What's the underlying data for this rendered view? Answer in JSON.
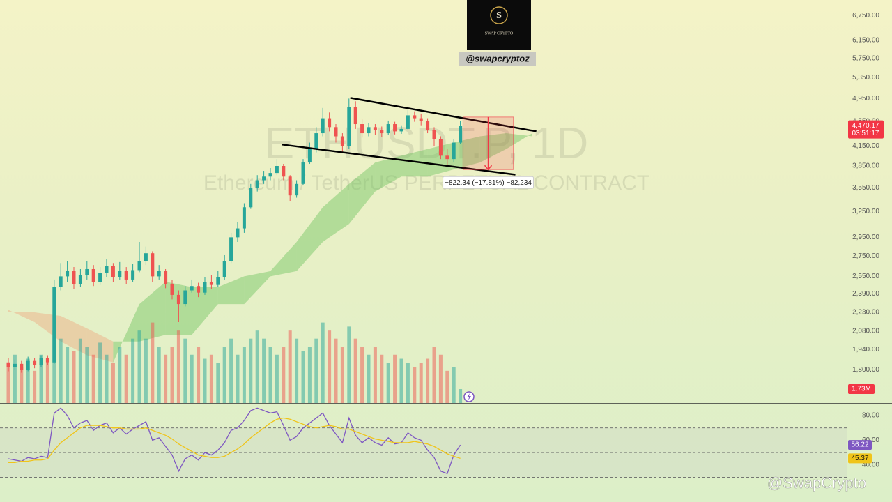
{
  "branding": {
    "logo_letter": "S",
    "logo_name": "SWAP CRYPTO",
    "handle": "@swapcryptoz",
    "watermark": "@SwapCrypto"
  },
  "chart_data": [
    {
      "type": "candlestick",
      "symbol_watermark": "ETHUSDT.P, 1D",
      "description_watermark": "Ethereum / TetherUS PERPETUAL CONTRACT",
      "open": [
        1850,
        1820,
        1840,
        1800,
        1860,
        1830,
        1880,
        1850,
        2450,
        2550,
        2600,
        2480,
        2560,
        2620,
        2500,
        2580,
        2650,
        2540,
        2600,
        2520,
        2610,
        2700,
        2780,
        2550,
        2600,
        2480,
        2380,
        2300,
        2420,
        2460,
        2400,
        2500,
        2470,
        2540,
        2700,
        2950,
        3050,
        3300,
        3550,
        3650,
        3700,
        3750,
        3850,
        3700,
        3450,
        3600,
        3900,
        4100,
        4350,
        4600,
        4450,
        4300,
        4150,
        4800,
        4500,
        4350,
        4450,
        4400,
        4350,
        4500,
        4380,
        4420,
        4650,
        4600,
        4550,
        4400,
        4250,
        4000,
        3950,
        4200
      ],
      "high": [
        1880,
        1870,
        1860,
        1890,
        1880,
        1900,
        1900,
        2520,
        2680,
        2700,
        2640,
        2620,
        2700,
        2660,
        2640,
        2720,
        2680,
        2690,
        2640,
        2670,
        2900,
        2850,
        2800,
        2660,
        2620,
        2520,
        2420,
        2460,
        2520,
        2490,
        2540,
        2560,
        2600,
        2760,
        3000,
        3120,
        3350,
        3600,
        3720,
        3780,
        3820,
        3950,
        3880,
        3720,
        3650,
        3950,
        4200,
        4450,
        4780,
        4700,
        4500,
        4350,
        4950,
        4900,
        4580,
        4520,
        4500,
        4460,
        4560,
        4540,
        4480,
        4750,
        4720,
        4680,
        4600,
        4450,
        4300,
        4100,
        4250,
        4550
      ],
      "low": [
        1790,
        1800,
        1780,
        1790,
        1810,
        1820,
        1830,
        1840,
        2420,
        2500,
        2430,
        2450,
        2520,
        2460,
        2470,
        2540,
        2500,
        2520,
        2480,
        2500,
        2590,
        2660,
        2500,
        2520,
        2440,
        2340,
        2150,
        2280,
        2400,
        2360,
        2380,
        2430,
        2450,
        2520,
        2680,
        2900,
        3000,
        3280,
        3500,
        3600,
        3650,
        3720,
        3650,
        3380,
        3420,
        3580,
        3880,
        4050,
        4300,
        4380,
        4200,
        4060,
        4100,
        4420,
        4280,
        4300,
        4320,
        4290,
        4320,
        4330,
        4340,
        4400,
        4540,
        4480,
        4350,
        4150,
        3950,
        3850,
        3900,
        4180
      ],
      "close": [
        1820,
        1840,
        1800,
        1860,
        1830,
        1880,
        1850,
        2450,
        2550,
        2600,
        2480,
        2560,
        2620,
        2500,
        2580,
        2650,
        2540,
        2600,
        2520,
        2610,
        2700,
        2780,
        2550,
        2600,
        2480,
        2380,
        2300,
        2420,
        2460,
        2400,
        2500,
        2470,
        2540,
        2700,
        2950,
        3050,
        3300,
        3550,
        3650,
        3700,
        3750,
        3850,
        3700,
        3450,
        3600,
        3900,
        4100,
        4350,
        4600,
        4450,
        4300,
        4150,
        4800,
        4500,
        4350,
        4450,
        4400,
        4350,
        4500,
        4380,
        4420,
        4650,
        4600,
        4550,
        4400,
        4250,
        4000,
        3950,
        4200,
        4470.17
      ],
      "colors": {
        "up": "#26a69a",
        "down": "#ef5350"
      },
      "log_scale": true,
      "ylim": [
        1590,
        7150
      ],
      "yticks": [
        {
          "value": 6750,
          "label": "6,750.00"
        },
        {
          "value": 6150,
          "label": "6,150.00"
        },
        {
          "value": 5750,
          "label": "5,750.00"
        },
        {
          "value": 5350,
          "label": "5,350.00"
        },
        {
          "value": 4950,
          "label": "4,950.00"
        },
        {
          "value": 4550,
          "label": "4,550.00"
        },
        {
          "value": 4150,
          "label": "4,150.00"
        },
        {
          "value": 3850,
          "label": "3,850.00"
        },
        {
          "value": 3550,
          "label": "3,550.00"
        },
        {
          "value": 3250,
          "label": "3,250.00"
        },
        {
          "value": 2950,
          "label": "2,950.00"
        },
        {
          "value": 2750,
          "label": "2,750.00"
        },
        {
          "value": 2550,
          "label": "2,550.00"
        },
        {
          "value": 2390,
          "label": "2,390.00"
        },
        {
          "value": 2230,
          "label": "2,230.00"
        },
        {
          "value": 2080,
          "label": "2,080.00"
        },
        {
          "value": 1940,
          "label": "1,940.00"
        },
        {
          "value": 1800,
          "label": "1,800.00"
        }
      ],
      "last_price": {
        "value": 4470.17,
        "label": "4,470.17"
      },
      "countdown": "03:51:17",
      "volume": {
        "values": [
          5,
          6,
          4.5,
          5.5,
          4,
          6,
          5,
          9,
          8,
          7,
          6.5,
          8,
          7,
          6,
          7.5,
          6,
          5,
          7,
          6,
          8,
          9,
          8,
          10,
          7,
          6,
          7,
          9,
          8,
          6,
          7,
          5.5,
          6,
          5,
          7,
          8,
          6,
          7,
          8,
          9,
          8,
          7,
          6,
          7,
          9,
          8,
          6.5,
          7,
          8,
          10,
          9,
          8,
          7,
          9.5,
          8,
          7,
          6,
          7,
          6,
          5,
          6,
          5.5,
          5,
          4.5,
          5,
          5.5,
          7,
          6,
          4,
          4.5,
          1.73
        ],
        "ylim": [
          0,
          13
        ],
        "last_label": "1.73M"
      },
      "cloud": {
        "x": [
          0,
          4,
          8,
          12,
          16,
          20,
          24,
          28,
          32,
          36,
          40,
          44,
          48,
          52,
          56,
          60,
          64,
          68,
          72,
          76,
          80
        ],
        "span_a": [
          2250,
          2150,
          2000,
          1900,
          1850,
          2300,
          2500,
          2450,
          2450,
          2550,
          2600,
          2900,
          3300,
          3600,
          3900,
          4000,
          4100,
          4200,
          4300,
          4350,
          4300
        ],
        "span_b": [
          2230,
          2230,
          2200,
          2100,
          2000,
          2000,
          2050,
          2050,
          2300,
          2300,
          2550,
          2600,
          2900,
          3100,
          3500,
          3700,
          3700,
          3800,
          3900,
          4100,
          4350
        ]
      },
      "trendlines": [
        {
          "x": [
            52.2,
            80.6
          ],
          "y": [
            4963,
            4380
          ]
        },
        {
          "x": [
            41.8,
            77.4
          ],
          "y": [
            4170,
            3727
          ]
        }
      ],
      "measure": {
        "x": [
          69.4,
          77.1
        ],
        "y": [
          4620.34,
          3798
        ],
        "label": "−822.34 (−17.81%) −82,234"
      }
    },
    {
      "type": "line",
      "series": [
        {
          "color": "#7e57c2",
          "values": [
            45,
            44,
            43,
            46,
            45,
            47,
            46,
            82,
            86,
            80,
            70,
            74,
            76,
            68,
            72,
            74,
            66,
            70,
            65,
            69,
            72,
            75,
            60,
            62,
            55,
            48,
            35,
            45,
            48,
            44,
            50,
            48,
            52,
            58,
            68,
            70,
            76,
            84,
            86,
            84,
            82,
            83,
            72,
            60,
            63,
            70,
            74,
            78,
            82,
            72,
            65,
            58,
            78,
            64,
            58,
            62,
            58,
            56,
            62,
            57,
            58,
            66,
            62,
            60,
            52,
            46,
            35,
            33,
            48,
            56.22
          ]
        },
        {
          "color": "#f0c419",
          "values": [
            42,
            42,
            43,
            43,
            44,
            44,
            45,
            52,
            58,
            62,
            66,
            70,
            72,
            72,
            72,
            71,
            70,
            70,
            69,
            69,
            69,
            70,
            68,
            66,
            64,
            61,
            57,
            54,
            51,
            48,
            47,
            46,
            46,
            47,
            50,
            53,
            57,
            62,
            66,
            70,
            74,
            77,
            78,
            77,
            75,
            73,
            71,
            70,
            71,
            72,
            71,
            69,
            69,
            67,
            65,
            63,
            61,
            60,
            59,
            58,
            58,
            58,
            59,
            58,
            57,
            55,
            52,
            49,
            47,
            45.37
          ]
        }
      ],
      "ylim": [
        10,
        89
      ],
      "yticks": [
        {
          "value": 80,
          "label": "80.00"
        },
        {
          "value": 60,
          "label": "60.00"
        },
        {
          "value": 40,
          "label": "40.00"
        }
      ],
      "levels": [
        70,
        50,
        30
      ]
    }
  ]
}
